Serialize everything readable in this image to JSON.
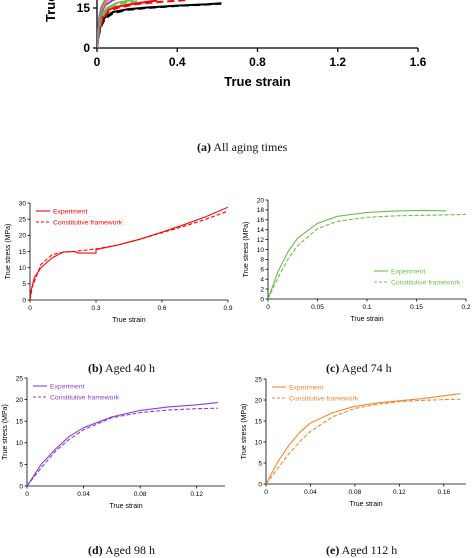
{
  "chart_data": [
    {
      "type": "line",
      "panel": "a",
      "xlabel": "True strain",
      "ylabel": "True stress (MPa)",
      "xlim": [
        0,
        1.6
      ],
      "ylim": [
        0,
        21
      ],
      "x_ticks": [
        "0",
        "0.4",
        "0.8",
        "1.2",
        "1.6"
      ],
      "y_ticks": [
        "0",
        "15"
      ],
      "series": [
        {
          "color": "#000000",
          "dash": "none",
          "x": [
            0,
            0.01,
            0.02,
            0.04,
            0.08,
            0.15,
            0.25,
            0.4,
            0.55,
            0.62
          ],
          "y": [
            0,
            6,
            9,
            11.5,
            13.5,
            14.5,
            15.2,
            15.9,
            16.4,
            16.8
          ]
        },
        {
          "color": "#000000",
          "dash": "6,3",
          "x": [
            0,
            0.01,
            0.02,
            0.04,
            0.08,
            0.15,
            0.25,
            0.4,
            0.55,
            0.62
          ],
          "y": [
            0,
            5,
            8,
            11,
            13,
            14.3,
            15,
            15.8,
            16.3,
            16.6
          ]
        },
        {
          "color": "#ff0000",
          "dash": "none",
          "x": [
            0,
            0.01,
            0.03,
            0.06,
            0.1,
            0.15,
            0.2,
            0.25,
            0.3
          ],
          "y": [
            0,
            7,
            12,
            14.5,
            15.5,
            16.2,
            16.8,
            17.3,
            17.8
          ]
        },
        {
          "color": "#ff0000",
          "dash": "6,3",
          "x": [
            0,
            0.01,
            0.03,
            0.06,
            0.1,
            0.15,
            0.2,
            0.3,
            0.45
          ],
          "y": [
            0,
            6,
            11,
            13.8,
            15,
            15.8,
            16.5,
            17.2,
            18
          ]
        },
        {
          "color": "#6cbf4b",
          "dash": "none",
          "x": [
            0,
            0.01,
            0.02,
            0.05,
            0.1,
            0.18
          ],
          "y": [
            0,
            8,
            12,
            15,
            17,
            18
          ]
        },
        {
          "color": "#6cbf4b",
          "dash": "6,3",
          "x": [
            0,
            0.01,
            0.02,
            0.05,
            0.1,
            0.2
          ],
          "y": [
            0,
            7,
            11,
            14.5,
            16.5,
            17.5
          ]
        },
        {
          "color": "#8b3fd9",
          "dash": "none",
          "x": [
            0,
            0.01,
            0.02,
            0.04,
            0.08,
            0.14
          ],
          "y": [
            0,
            9,
            13,
            16,
            18,
            19.3
          ]
        },
        {
          "color": "#f08a30",
          "dash": "none",
          "x": [
            0,
            0.01,
            0.02,
            0.04,
            0.08,
            0.17
          ],
          "y": [
            0,
            10,
            14,
            17,
            19.5,
            20.5
          ]
        },
        {
          "color": "#8a8a8a",
          "dash": "none",
          "x": [
            0,
            0.01,
            0.02,
            0.04,
            0.08,
            0.12
          ],
          "y": [
            0,
            11,
            15,
            18,
            20,
            20.8
          ]
        }
      ]
    },
    {
      "type": "line",
      "panel": "b",
      "xlabel": "True strain",
      "ylabel": "True stress (MPa)",
      "xlim": [
        0,
        0.9
      ],
      "ylim": [
        0,
        30
      ],
      "x_ticks": [
        "0",
        "0.3",
        "0.6",
        "0.9"
      ],
      "y_ticks": [
        "0",
        "5",
        "10",
        "15",
        "20",
        "25",
        "30"
      ],
      "legend_position": "top-left",
      "series": [
        {
          "name": "Experiment",
          "color": "#ff0000",
          "dash": "none",
          "x": [
            0,
            0.005,
            0.02,
            0.05,
            0.1,
            0.15,
            0.2,
            0.22,
            0.3,
            0.3,
            0.4,
            0.5,
            0.6,
            0.7,
            0.8,
            0.9
          ],
          "y": [
            0,
            3,
            7,
            10,
            13,
            14.8,
            15,
            14.5,
            14.5,
            15.6,
            17,
            18.8,
            21,
            23.3,
            25.8,
            28.7
          ]
        },
        {
          "name": "Constitutive framework",
          "color": "#ff0000",
          "dash": "6,3",
          "x": [
            0,
            0.01,
            0.05,
            0.1,
            0.15,
            0.2,
            0.3,
            0.4,
            0.5,
            0.6,
            0.7,
            0.8,
            0.9
          ],
          "y": [
            0,
            4,
            11,
            14,
            14.8,
            15,
            15.8,
            17,
            18.8,
            20.8,
            22.8,
            25,
            27.5
          ]
        }
      ]
    },
    {
      "type": "line",
      "panel": "c",
      "xlabel": "True strain",
      "ylabel": "True stress (MPa)",
      "xlim": [
        0,
        0.2
      ],
      "ylim": [
        0,
        20
      ],
      "x_ticks": [
        "0",
        "0.05",
        "0.1",
        "0.15",
        "0.2"
      ],
      "y_ticks": [
        "0",
        "2",
        "4",
        "6",
        "8",
        "10",
        "12",
        "14",
        "16",
        "18",
        "20"
      ],
      "legend_position": "bottom-right",
      "series": [
        {
          "name": "Experiment",
          "color": "#6cbf4b",
          "dash": "none",
          "x": [
            0,
            0.01,
            0.02,
            0.03,
            0.05,
            0.07,
            0.1,
            0.13,
            0.16,
            0.18
          ],
          "y": [
            0,
            5.5,
            9.5,
            12.3,
            15.3,
            16.7,
            17.5,
            17.8,
            17.9,
            17.8
          ]
        },
        {
          "name": "Constitutive framework",
          "color": "#6cbf4b",
          "dash": "6,3",
          "x": [
            0,
            0.01,
            0.02,
            0.03,
            0.05,
            0.07,
            0.1,
            0.13,
            0.16,
            0.2
          ],
          "y": [
            0,
            4.2,
            8,
            10.8,
            14.2,
            15.7,
            16.5,
            16.8,
            16.9,
            17.1
          ]
        }
      ]
    },
    {
      "type": "line",
      "panel": "d",
      "xlabel": "True strain",
      "ylabel": "True stress (MPa)",
      "xlim": [
        0,
        0.14
      ],
      "ylim": [
        0,
        25
      ],
      "x_ticks": [
        "0",
        "0.04",
        "0.08",
        "0.12"
      ],
      "y_ticks": [
        "0",
        "5",
        "10",
        "15",
        "20",
        "25"
      ],
      "legend_position": "top-left",
      "series": [
        {
          "name": "Experiment",
          "color": "#8b3fd9",
          "dash": "none",
          "x": [
            0,
            0.005,
            0.01,
            0.02,
            0.03,
            0.04,
            0.06,
            0.08,
            0.1,
            0.12,
            0.135
          ],
          "y": [
            0,
            2.5,
            5,
            8.5,
            11.5,
            13.5,
            16,
            17.5,
            18.3,
            18.8,
            19.3
          ]
        },
        {
          "name": "Constitutive framework",
          "color": "#8b3fd9",
          "dash": "6,3",
          "x": [
            0,
            0.01,
            0.02,
            0.03,
            0.04,
            0.06,
            0.08,
            0.1,
            0.12,
            0.135
          ],
          "y": [
            0,
            4.2,
            8,
            10.8,
            13,
            15.8,
            17,
            17.6,
            17.9,
            18
          ]
        }
      ]
    },
    {
      "type": "line",
      "panel": "e",
      "xlabel": "True strain",
      "ylabel": "True stress (MPa)",
      "xlim": [
        0,
        0.18
      ],
      "ylim": [
        0,
        25
      ],
      "x_ticks": [
        "0",
        "0.04",
        "0.08",
        "0.12",
        "0.16"
      ],
      "y_ticks": [
        "0",
        "5",
        "10",
        "15",
        "20",
        "25"
      ],
      "legend_position": "top-left",
      "series": [
        {
          "name": "Experiment",
          "color": "#f08a30",
          "dash": "none",
          "x": [
            0,
            0.01,
            0.02,
            0.03,
            0.04,
            0.06,
            0.08,
            0.1,
            0.12,
            0.14,
            0.16,
            0.175
          ],
          "y": [
            0,
            5,
            9,
            12.2,
            14.5,
            17,
            18.5,
            19.3,
            19.8,
            20.3,
            21,
            21.5
          ]
        },
        {
          "name": "Constitutive framework",
          "color": "#f08a30",
          "dash": "6,3",
          "x": [
            0,
            0.01,
            0.02,
            0.03,
            0.04,
            0.06,
            0.08,
            0.1,
            0.12,
            0.14,
            0.16,
            0.175
          ],
          "y": [
            0,
            3.5,
            7,
            10,
            12.5,
            16,
            18,
            19,
            19.6,
            19.9,
            20.1,
            20.2
          ]
        }
      ]
    }
  ],
  "captions": [
    {
      "letter": "(a)",
      "text": "All aging times"
    },
    {
      "letter": "(b)",
      "text": "Aged 40 h"
    },
    {
      "letter": "(c)",
      "text": "Aged 74 h"
    },
    {
      "letter": "(d)",
      "text": "Aged 98 h"
    },
    {
      "letter": "(e)",
      "text": "Aged 112 h"
    }
  ]
}
